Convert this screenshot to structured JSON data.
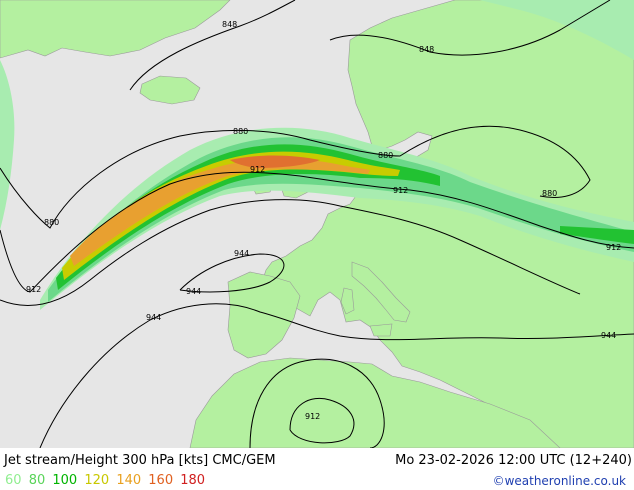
{
  "footer": {
    "title": "Jet stream/Height 300 hPa [kts] CMC/GEM",
    "datetime": "Mo 23-02-2026 12:00 UTC (12+240)",
    "credit": "©weatheronline.co.uk"
  },
  "legend": [
    {
      "label": "60",
      "color": "#90ee90"
    },
    {
      "label": "80",
      "color": "#5ad45a"
    },
    {
      "label": "100",
      "color": "#00b400"
    },
    {
      "label": "120",
      "color": "#c8c800"
    },
    {
      "label": "140",
      "color": "#e8a020"
    },
    {
      "label": "160",
      "color": "#e06020"
    },
    {
      "label": "180",
      "color": "#d02020"
    }
  ],
  "contour_labels": [
    "848",
    "848",
    "880",
    "880",
    "880",
    "880",
    "912",
    "912",
    "912",
    "912",
    "912",
    "944",
    "944",
    "944",
    "944"
  ],
  "colors": {
    "sea": "#e6e6e6",
    "land": "#b4f0a0",
    "jet60": "#a8ecb0",
    "jet80": "#6cd88a",
    "jet100": "#22c232",
    "jet120": "#c8cc00",
    "jet140": "#e8a030",
    "jet160": "#e07030"
  }
}
